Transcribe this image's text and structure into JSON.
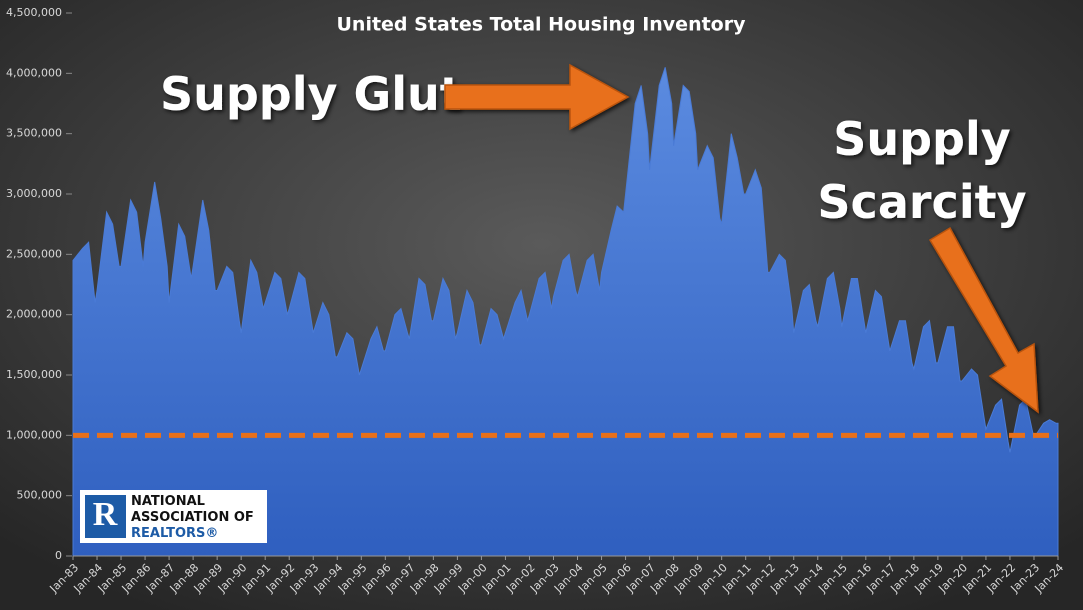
{
  "chart_data": {
    "type": "area",
    "title": "United States Total Housing Inventory",
    "annotations": [
      "Supply Glut",
      [
        "Supply",
        "Scarcity"
      ]
    ],
    "logo": [
      "NATIONAL",
      "ASSOCIATION OF",
      "REALTORS®"
    ],
    "color": "#4a7bd6",
    "reference_line": 1000000,
    "reference_color": "#e8701a",
    "xlim": [
      1983,
      2024
    ],
    "ylim": [
      0,
      4500000
    ],
    "yticks": [
      0,
      {
        "value": 500000,
        "label": "500,000"
      },
      {
        "value": 1000000,
        "label": "1,000,000"
      },
      {
        "value": 1500000,
        "label": "1,500,000"
      },
      {
        "value": 2000000,
        "label": "2,000,000"
      },
      {
        "value": 2500000,
        "label": "2,500,000"
      },
      {
        "value": 3000000,
        "label": "3,000,000"
      },
      {
        "value": 3500000,
        "label": "3,500,000"
      },
      {
        "value": 4000000,
        "label": "4,000,000"
      },
      {
        "value": 4500000,
        "label": "4,500,000"
      }
    ],
    "xticks": [
      {
        "value": 1983,
        "label": "Jan-83"
      },
      {
        "value": 1984,
        "label": "Jan-84"
      },
      {
        "value": 1985,
        "label": "Jan-85"
      },
      {
        "value": 1986,
        "label": "Jan-86"
      },
      {
        "value": 1987,
        "label": "Jan-87"
      },
      {
        "value": 1988,
        "label": "Jan-88"
      },
      {
        "value": 1989,
        "label": "Jan-89"
      },
      {
        "value": 1990,
        "label": "Jan-90"
      },
      {
        "value": 1991,
        "label": "Jan-91"
      },
      {
        "value": 1992,
        "label": "Jan-92"
      },
      {
        "value": 1993,
        "label": "Jan-93"
      },
      {
        "value": 1994,
        "label": "Jan-94"
      },
      {
        "value": 1995,
        "label": "Jan-95"
      },
      {
        "value": 1996,
        "label": "Jan-96"
      },
      {
        "value": 1997,
        "label": "Jan-97"
      },
      {
        "value": 1998,
        "label": "Jan-98"
      },
      {
        "value": 1999,
        "label": "Jan-99"
      },
      {
        "value": 2000,
        "label": "Jan-00"
      },
      {
        "value": 2001,
        "label": "Jan-01"
      },
      {
        "value": 2002,
        "label": "Jan-02"
      },
      {
        "value": 2003,
        "label": "Jan-03"
      },
      {
        "value": 2004,
        "label": "Jan-04"
      },
      {
        "value": 2005,
        "label": "Jan-05"
      },
      {
        "value": 2006,
        "label": "Jan-06"
      },
      {
        "value": 2007,
        "label": "Jan-07"
      },
      {
        "value": 2008,
        "label": "Jan-08"
      },
      {
        "value": 2009,
        "label": "Jan-09"
      },
      {
        "value": 2010,
        "label": "Jan-10"
      },
      {
        "value": 2011,
        "label": "Jan-11"
      },
      {
        "value": 2012,
        "label": "Jan-12"
      },
      {
        "value": 2013,
        "label": "Jan-13"
      },
      {
        "value": 2014,
        "label": "Jan-14"
      },
      {
        "value": 2015,
        "label": "Jan-15"
      },
      {
        "value": 2016,
        "label": "Jan-16"
      },
      {
        "value": 2017,
        "label": "Jan-17"
      },
      {
        "value": 2018,
        "label": "Jan-18"
      },
      {
        "value": 2019,
        "label": "Jan-19"
      },
      {
        "value": 2020,
        "label": "Jan-20"
      },
      {
        "value": 2021,
        "label": "Jan-21"
      },
      {
        "value": 2022,
        "label": "Jan-22"
      },
      {
        "value": 2023,
        "label": "Jan-23"
      },
      {
        "value": 2024,
        "label": "Jan-24"
      }
    ],
    "x": [
      1983,
      1983.4,
      1983.65,
      1983.92,
      1984,
      1984.4,
      1984.65,
      1984.92,
      1985,
      1985.4,
      1985.65,
      1985.92,
      1986,
      1986.4,
      1986.65,
      1986.92,
      1987,
      1987.4,
      1987.65,
      1987.92,
      1988,
      1988.4,
      1988.65,
      1988.92,
      1989,
      1989.4,
      1989.65,
      1989.92,
      1990,
      1990.4,
      1990.65,
      1990.92,
      1991,
      1991.4,
      1991.65,
      1991.92,
      1992,
      1992.4,
      1992.65,
      1992.92,
      1993,
      1993.4,
      1993.65,
      1993.92,
      1994,
      1994.4,
      1994.65,
      1994.92,
      1995,
      1995.4,
      1995.65,
      1995.92,
      1996,
      1996.4,
      1996.65,
      1996.92,
      1997,
      1997.4,
      1997.65,
      1997.92,
      1998,
      1998.4,
      1998.65,
      1998.92,
      1999,
      1999.4,
      1999.65,
      1999.92,
      2000,
      2000.4,
      2000.65,
      2000.92,
      2001,
      2001.4,
      2001.65,
      2001.92,
      2002,
      2002.4,
      2002.65,
      2002.92,
      2003,
      2003.4,
      2003.65,
      2003.92,
      2004,
      2004.4,
      2004.65,
      2004.92,
      2005,
      2005.4,
      2005.65,
      2005.92,
      2006,
      2006.4,
      2006.65,
      2006.92,
      2007,
      2007.4,
      2007.65,
      2007.92,
      2008,
      2008.4,
      2008.65,
      2008.92,
      2009,
      2009.4,
      2009.65,
      2009.92,
      2010,
      2010.4,
      2010.65,
      2010.92,
      2011,
      2011.4,
      2011.65,
      2011.92,
      2012,
      2012.4,
      2012.65,
      2012.92,
      2013,
      2013.4,
      2013.65,
      2013.92,
      2014,
      2014.4,
      2014.65,
      2014.92,
      2015,
      2015.4,
      2015.65,
      2015.92,
      2016,
      2016.4,
      2016.65,
      2016.92,
      2017,
      2017.4,
      2017.65,
      2017.92,
      2018,
      2018.4,
      2018.65,
      2018.92,
      2019,
      2019.4,
      2019.65,
      2019.92,
      2020,
      2020.4,
      2020.65,
      2020.92,
      2021,
      2021.4,
      2021.65,
      2021.92,
      2022,
      2022.4,
      2022.65,
      2022.92,
      2023,
      2023.4,
      2023.65,
      2023.92,
      2024
    ],
    "values": [
      2450000,
      2550000,
      2600000,
      2100000,
      2200000,
      2850000,
      2750000,
      2400000,
      2400000,
      2950000,
      2850000,
      2400000,
      2600000,
      3100000,
      2800000,
      2400000,
      2100000,
      2750000,
      2650000,
      2300000,
      2400000,
      2950000,
      2700000,
      2200000,
      2200000,
      2400000,
      2350000,
      1950000,
      1850000,
      2450000,
      2350000,
      2050000,
      2100000,
      2350000,
      2300000,
      2000000,
      2050000,
      2350000,
      2300000,
      1950000,
      1850000,
      2100000,
      2000000,
      1650000,
      1650000,
      1850000,
      1800000,
      1500000,
      1550000,
      1800000,
      1900000,
      1700000,
      1700000,
      2000000,
      2050000,
      1850000,
      1800000,
      2300000,
      2250000,
      1950000,
      1950000,
      2300000,
      2200000,
      1800000,
      1850000,
      2200000,
      2100000,
      1750000,
      1750000,
      2050000,
      2000000,
      1800000,
      1850000,
      2100000,
      2200000,
      1950000,
      2000000,
      2300000,
      2350000,
      2050000,
      2150000,
      2450000,
      2500000,
      2200000,
      2150000,
      2450000,
      2500000,
      2200000,
      2350000,
      2700000,
      2900000,
      2850000,
      3000000,
      3750000,
      3900000,
      3500000,
      3200000,
      3900000,
      4050000,
      3750000,
      3400000,
      3900000,
      3850000,
      3500000,
      3200000,
      3400000,
      3300000,
      2800000,
      2750000,
      3500000,
      3300000,
      3000000,
      3000000,
      3200000,
      3050000,
      2350000,
      2350000,
      2500000,
      2450000,
      2050000,
      1850000,
      2200000,
      2250000,
      1950000,
      1900000,
      2300000,
      2350000,
      2050000,
      1900000,
      2300000,
      2300000,
      1950000,
      1850000,
      2200000,
      2150000,
      1800000,
      1700000,
      1950000,
      1950000,
      1600000,
      1550000,
      1900000,
      1950000,
      1600000,
      1600000,
      1900000,
      1900000,
      1450000,
      1450000,
      1550000,
      1500000,
      1150000,
      1050000,
      1250000,
      1300000,
      950000,
      860000,
      1250000,
      1300000,
      1050000,
      980000,
      1100000,
      1130000,
      1100000,
      1100000
    ]
  }
}
